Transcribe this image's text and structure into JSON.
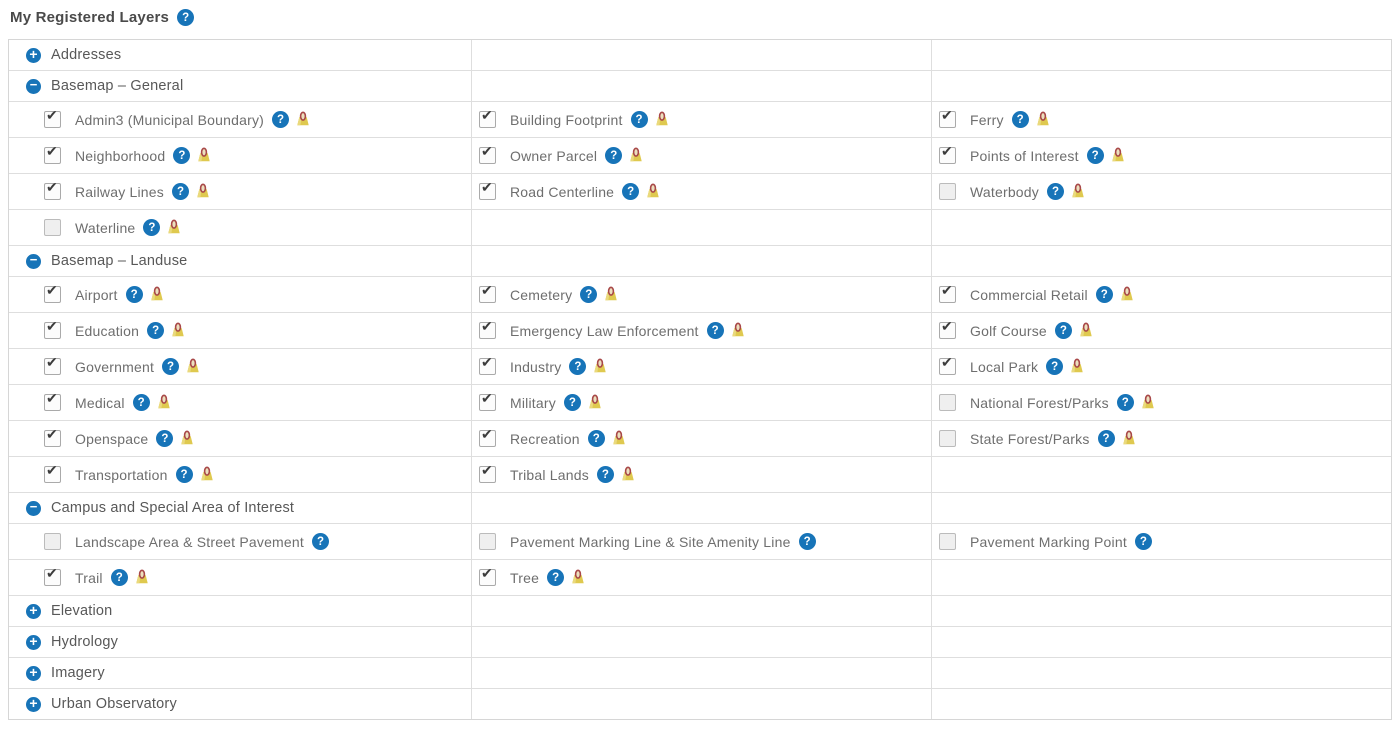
{
  "header": {
    "title": "My Registered Layers",
    "help_icon": "question-circle-icon"
  },
  "icons": {
    "expand": "plus-circle-icon",
    "collapse": "minus-circle-icon",
    "layer_help": "question-circle-icon",
    "layer_marker": "yellow-map-marker-icon"
  },
  "colors": {
    "accent_blue": "#1774b8",
    "marker_yellow": "#dfc94f",
    "marker_red": "#a84848",
    "grid_line": "#dedede",
    "title_text": "#4a4a4a",
    "section_text": "#585858",
    "layer_text": "#6e6e6e"
  },
  "table": {
    "sections": [
      {
        "label": "Addresses",
        "state": "collapsed",
        "rows": []
      },
      {
        "label": "Basemap – General",
        "state": "expanded",
        "rows": [
          [
            {
              "label": "Admin3 (Municipal Boundary)",
              "checked": true,
              "help": true,
              "pin": true
            },
            {
              "label": "Building Footprint",
              "checked": true,
              "help": true,
              "pin": true
            },
            {
              "label": "Ferry",
              "checked": true,
              "help": true,
              "pin": true
            }
          ],
          [
            {
              "label": "Neighborhood",
              "checked": true,
              "help": true,
              "pin": true
            },
            {
              "label": "Owner Parcel",
              "checked": true,
              "help": true,
              "pin": true
            },
            {
              "label": "Points of Interest",
              "checked": true,
              "help": true,
              "pin": true
            }
          ],
          [
            {
              "label": "Railway Lines",
              "checked": true,
              "help": true,
              "pin": true
            },
            {
              "label": "Road Centerline",
              "checked": true,
              "help": true,
              "pin": true
            },
            {
              "label": "Waterbody",
              "checked": false,
              "help": true,
              "pin": true
            }
          ],
          [
            {
              "label": "Waterline",
              "checked": false,
              "help": true,
              "pin": true
            },
            null,
            null
          ]
        ]
      },
      {
        "label": "Basemap – Landuse",
        "state": "expanded",
        "rows": [
          [
            {
              "label": "Airport",
              "checked": true,
              "help": true,
              "pin": true
            },
            {
              "label": "Cemetery",
              "checked": true,
              "help": true,
              "pin": true
            },
            {
              "label": "Commercial Retail",
              "checked": true,
              "help": true,
              "pin": true
            }
          ],
          [
            {
              "label": "Education",
              "checked": true,
              "help": true,
              "pin": true
            },
            {
              "label": "Emergency Law Enforcement",
              "checked": true,
              "help": true,
              "pin": true
            },
            {
              "label": "Golf Course",
              "checked": true,
              "help": true,
              "pin": true
            }
          ],
          [
            {
              "label": "Government",
              "checked": true,
              "help": true,
              "pin": true
            },
            {
              "label": "Industry",
              "checked": true,
              "help": true,
              "pin": true
            },
            {
              "label": "Local Park",
              "checked": true,
              "help": true,
              "pin": true
            }
          ],
          [
            {
              "label": "Medical",
              "checked": true,
              "help": true,
              "pin": true
            },
            {
              "label": "Military",
              "checked": true,
              "help": true,
              "pin": true
            },
            {
              "label": "National Forest/Parks",
              "checked": false,
              "help": true,
              "pin": true
            }
          ],
          [
            {
              "label": "Openspace",
              "checked": true,
              "help": true,
              "pin": true
            },
            {
              "label": "Recreation",
              "checked": true,
              "help": true,
              "pin": true
            },
            {
              "label": "State Forest/Parks",
              "checked": false,
              "help": true,
              "pin": true
            }
          ],
          [
            {
              "label": "Transportation",
              "checked": true,
              "help": true,
              "pin": true
            },
            {
              "label": "Tribal Lands",
              "checked": true,
              "help": true,
              "pin": true
            },
            null
          ]
        ]
      },
      {
        "label": "Campus and Special Area of Interest",
        "state": "expanded",
        "rows": [
          [
            {
              "label": "Landscape Area & Street Pavement",
              "checked": false,
              "help": true,
              "pin": false
            },
            {
              "label": "Pavement Marking Line & Site Amenity Line",
              "checked": false,
              "help": true,
              "pin": false
            },
            {
              "label": "Pavement Marking Point",
              "checked": false,
              "help": true,
              "pin": false
            }
          ],
          [
            {
              "label": "Trail",
              "checked": true,
              "help": true,
              "pin": true
            },
            {
              "label": "Tree",
              "checked": true,
              "help": true,
              "pin": true
            },
            null
          ]
        ]
      },
      {
        "label": "Elevation",
        "state": "collapsed",
        "rows": []
      },
      {
        "label": "Hydrology",
        "state": "collapsed",
        "rows": []
      },
      {
        "label": "Imagery",
        "state": "collapsed",
        "rows": []
      },
      {
        "label": "Urban Observatory",
        "state": "collapsed",
        "rows": []
      }
    ]
  }
}
